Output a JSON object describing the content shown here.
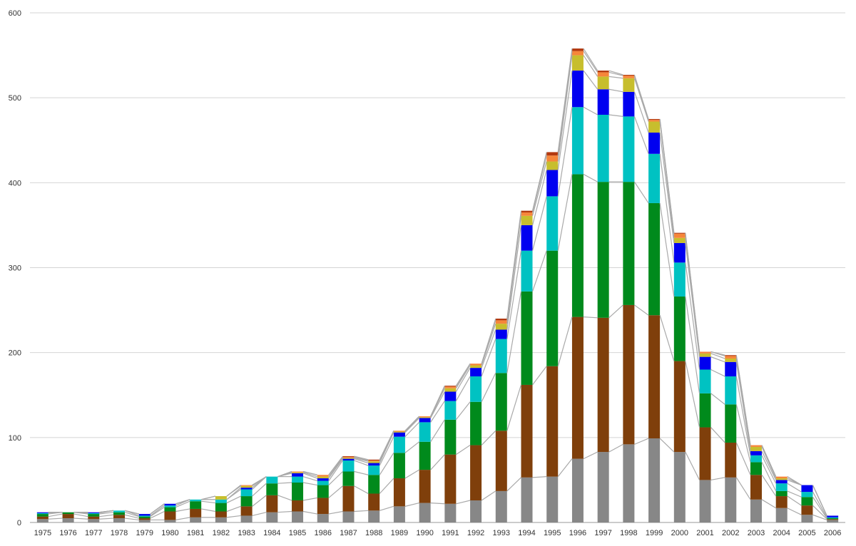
{
  "chart_data": {
    "type": "bar",
    "stacked": true,
    "connector_lines": true,
    "grid": "horizontal",
    "legend": "none",
    "ylim": [
      0,
      600
    ],
    "yticks": [
      "0",
      "100",
      "200",
      "300",
      "400",
      "500",
      "600"
    ],
    "categories": [
      "1975",
      "1976",
      "1977",
      "1978",
      "1979",
      "1980",
      "1981",
      "1982",
      "1983",
      "1984",
      "1985",
      "1986",
      "1987",
      "1988",
      "1989",
      "1990",
      "1991",
      "1992",
      "1993",
      "1994",
      "1995",
      "1996",
      "1997",
      "1998",
      "1999",
      "2000",
      "2001",
      "2002",
      "2003",
      "2004",
      "2005",
      "2006"
    ],
    "series": [
      {
        "color": "#878787",
        "values": [
          4,
          5,
          4,
          5,
          3,
          3,
          6,
          6,
          8,
          12,
          13,
          10,
          13,
          14,
          19,
          23,
          22,
          26,
          37,
          53,
          54,
          75,
          83,
          92,
          99,
          83,
          50,
          53,
          27,
          17,
          9,
          3
        ]
      },
      {
        "color": "#7F3F0B",
        "values": [
          3,
          5,
          3,
          4,
          2,
          10,
          10,
          7,
          11,
          20,
          13,
          19,
          30,
          20,
          33,
          39,
          58,
          65,
          71,
          109,
          130,
          167,
          158,
          164,
          145,
          107,
          62,
          41,
          29,
          14,
          11,
          1
        ]
      },
      {
        "color": "#008A1C",
        "values": [
          3,
          2,
          3,
          3,
          2,
          5,
          9,
          10,
          12,
          14,
          21,
          15,
          17,
          22,
          30,
          33,
          41,
          51,
          68,
          110,
          136,
          168,
          160,
          145,
          132,
          76,
          40,
          45,
          15,
          6,
          10,
          1
        ]
      },
      {
        "color": "#00C2C2",
        "values": [
          1,
          0,
          1,
          2,
          1,
          2,
          2,
          4,
          8,
          8,
          7,
          5,
          13,
          11,
          19,
          23,
          22,
          30,
          40,
          48,
          64,
          79,
          79,
          77,
          58,
          40,
          28,
          33,
          8,
          9,
          6,
          1
        ]
      },
      {
        "color": "#0000F0",
        "values": [
          1,
          0,
          1,
          0,
          2,
          2,
          0,
          0,
          2,
          0,
          4,
          3,
          2,
          3,
          5,
          5,
          11,
          10,
          11,
          30,
          31,
          43,
          30,
          29,
          25,
          23,
          15,
          17,
          5,
          4,
          8,
          2
        ]
      },
      {
        "color": "#C7BE2D",
        "values": [
          0,
          0,
          0,
          0,
          0,
          0,
          0,
          4,
          2,
          0,
          1,
          2,
          1,
          2,
          1,
          1,
          4,
          3,
          7,
          11,
          10,
          18,
          15,
          16,
          13,
          6,
          4,
          4,
          5,
          2,
          0,
          0
        ]
      },
      {
        "color": "#F6863A",
        "values": [
          0,
          0,
          0,
          0,
          0,
          0,
          0,
          0,
          1,
          0,
          1,
          2,
          1,
          1,
          1,
          1,
          2,
          2,
          4,
          4,
          7,
          5,
          5,
          3,
          2,
          5,
          2,
          3,
          2,
          2,
          0,
          0
        ]
      },
      {
        "color": "#B3390F",
        "values": [
          0,
          0,
          0,
          0,
          0,
          0,
          0,
          0,
          0,
          0,
          0,
          0,
          1,
          1,
          0,
          0,
          1,
          0,
          2,
          2,
          4,
          3,
          2,
          1,
          1,
          1,
          0,
          1,
          0,
          0,
          0,
          0
        ]
      }
    ]
  }
}
